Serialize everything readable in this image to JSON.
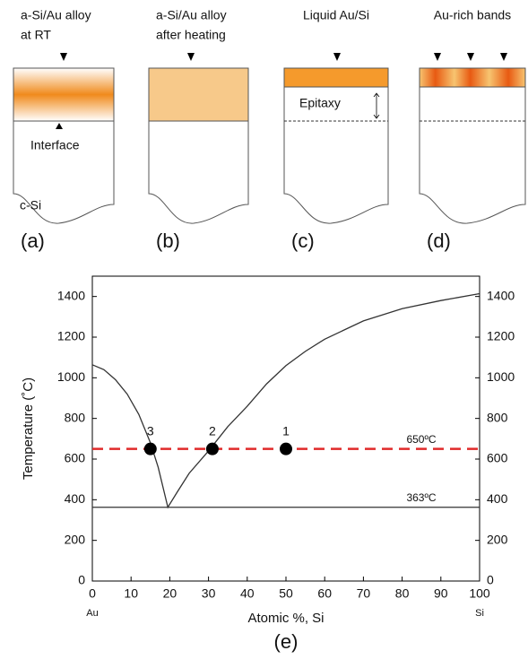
{
  "panels": [
    {
      "caption": [
        "a-Si/Au alloy",
        "at RT"
      ],
      "tag": "(a)"
    },
    {
      "caption": [
        "a-Si/Au alloy",
        "after heating"
      ],
      "tag": "(b)"
    },
    {
      "caption": [
        "Liquid Au/Si"
      ],
      "tag": "(c)"
    },
    {
      "caption": [
        "Au-rich bands"
      ],
      "tag": "(d)"
    }
  ],
  "annotations": {
    "interface": "Interface",
    "substrate": "c-Si",
    "epitaxy": "Epitaxy"
  },
  "chart_data": {
    "type": "line",
    "title": "(e)",
    "x_label": "Atomic %, Si",
    "y_label": "Temperature (˚C)",
    "x_end_labels": [
      "Au",
      "Si"
    ],
    "xlim": [
      0,
      100
    ],
    "xticks": [
      0,
      10,
      20,
      30,
      40,
      50,
      60,
      70,
      80,
      90,
      100
    ],
    "ylim": [
      0,
      1500
    ],
    "yticks": [
      0,
      200,
      400,
      600,
      800,
      1000,
      1200,
      1400
    ],
    "y2lim": [
      0,
      1500
    ],
    "y2ticks": [
      0,
      200,
      400,
      600,
      800,
      1000,
      1200,
      1400
    ],
    "series": [
      {
        "color": "#333333",
        "x": [
          0,
          3,
          6,
          9,
          12,
          15,
          17,
          19.5,
          22,
          25,
          30,
          35,
          40,
          45,
          50,
          55,
          60,
          70,
          80,
          90,
          100
        ],
        "values": [
          1064,
          1040,
          990,
          920,
          820,
          680,
          560,
          363,
          440,
          530,
          640,
          760,
          860,
          970,
          1060,
          1130,
          1190,
          1280,
          1340,
          1380,
          1414
        ]
      }
    ],
    "hlines": [
      {
        "value": 363,
        "label": "363ºC",
        "color": "#333333",
        "dashed": false
      },
      {
        "value": 650,
        "label": "650ºC",
        "color": "#e02a2a",
        "dashed": true
      }
    ],
    "points": {
      "x": [
        50,
        31,
        15
      ],
      "values": [
        650,
        650,
        650
      ],
      "labels": [
        "1",
        "2",
        "3"
      ],
      "color": "#000000"
    }
  }
}
